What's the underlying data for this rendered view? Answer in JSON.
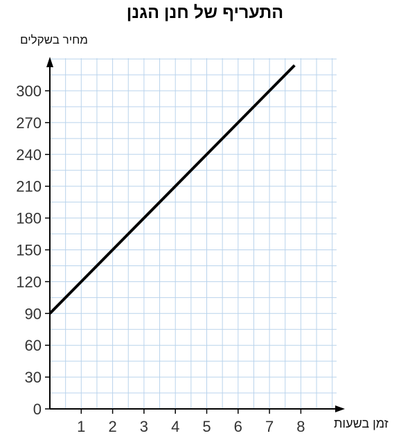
{
  "chart_data": {
    "type": "line",
    "title": "התעריף של חנן הגנן",
    "xlabel": "זמן בשעות",
    "ylabel": "מחיר בשקלים",
    "xlim": [
      0,
      8
    ],
    "ylim": [
      0,
      300
    ],
    "x_ticks": [
      "1",
      "2",
      "3",
      "4",
      "5",
      "6",
      "7",
      "8"
    ],
    "y_ticks": [
      "0",
      "30",
      "60",
      "90",
      "120",
      "150",
      "180",
      "210",
      "240",
      "270",
      "300"
    ],
    "grid": true,
    "series": [
      {
        "x": [
          0,
          7.8
        ],
        "y": [
          90,
          324
        ],
        "color": "#000000"
      }
    ],
    "grid_color": "#b9d3ec",
    "axis_color": "#000000"
  }
}
